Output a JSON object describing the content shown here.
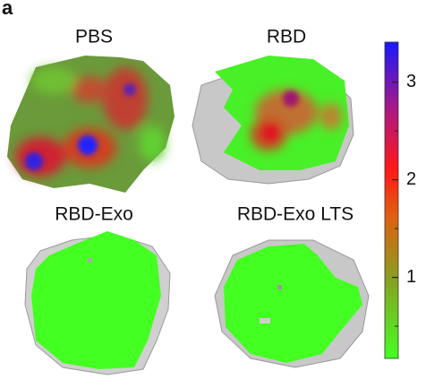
{
  "panel_label": "a",
  "panels": [
    {
      "title": "PBS"
    },
    {
      "title": "RBD"
    },
    {
      "title": "RBD-Exo"
    },
    {
      "title": "RBD-Exo LTS"
    }
  ],
  "colorbar": {
    "lim": [
      0.17,
      3.41
    ],
    "ticks": [
      1,
      2,
      3
    ],
    "minor_ticks": [
      0.5,
      1.5,
      2.5
    ]
  }
}
